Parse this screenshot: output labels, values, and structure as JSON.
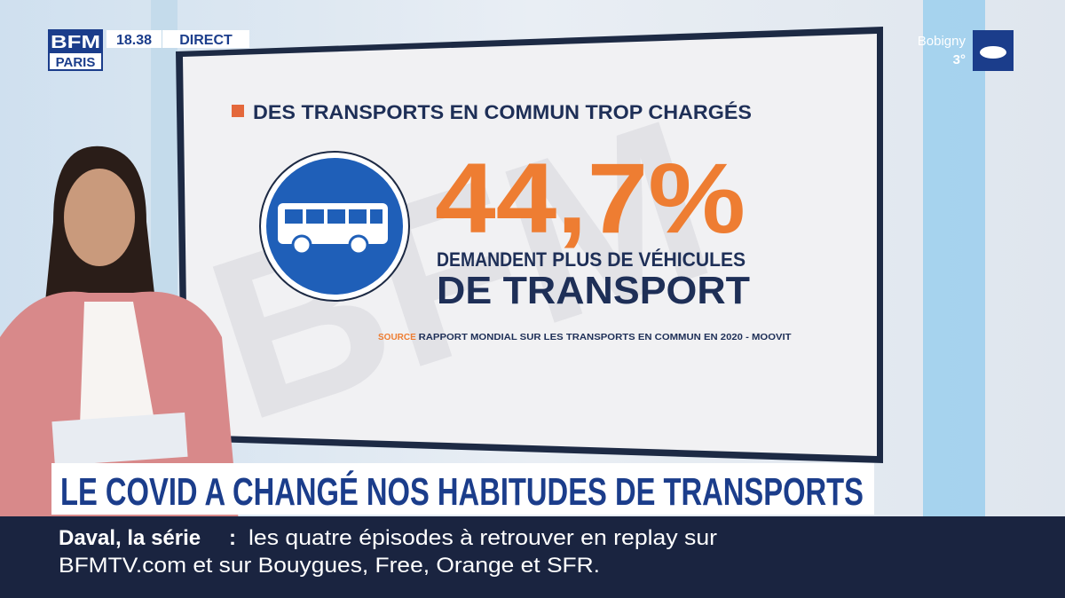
{
  "logo": {
    "brand": "BFM",
    "region": "PARIS"
  },
  "status": {
    "time": "18.38",
    "live": "DIRECT"
  },
  "weather": {
    "city": "Bobigny",
    "temperature": "3°"
  },
  "screen": {
    "heading": "DES TRANSPORTS EN COMMUN TROP CHARGÉS",
    "figure": "44,7%",
    "caption_start": "DEMANDENT",
    "caption_bold": "PLUS DE VÉHICULES",
    "caption_big": "DE TRANSPORT",
    "source_label": "SOURCE",
    "source_text": "RAPPORT MONDIAL SUR LES TRANSPORTS EN COMMUN EN 2020 - MOOVIT"
  },
  "headline": "LE COVID A CHANGÉ NOS HABITUDES DE TRANSPORTS",
  "ticker": {
    "title": "Daval, la série",
    "separator": ":",
    "lines": [
      "les quatre épisodes à retrouver en replay sur",
      "BFMTV.com et sur Bouygues, Free, Orange et SFR."
    ]
  }
}
